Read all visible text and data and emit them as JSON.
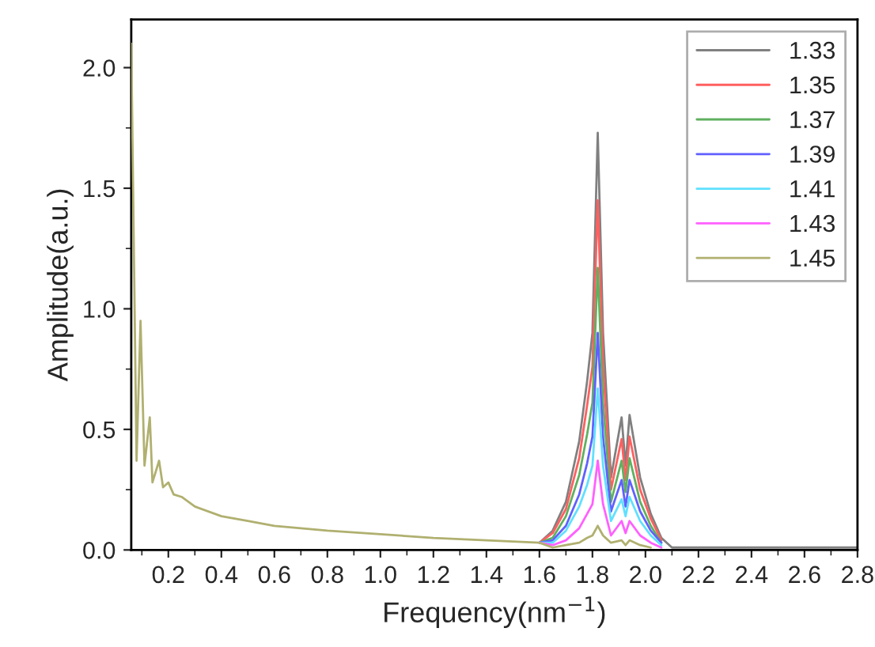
{
  "chart_data": {
    "type": "line",
    "xlabel": "Frequency(nm$^{−1}$)",
    "ylabel": "Amplitude(a.u.)",
    "x": [
      0.06,
      0.08,
      0.095,
      0.11,
      0.13,
      0.14,
      0.165,
      0.18,
      0.2,
      0.22,
      0.25,
      0.3,
      0.4,
      0.5,
      0.6,
      0.8,
      1.0,
      1.2,
      1.4,
      1.5,
      1.6,
      1.65,
      1.7,
      1.75,
      1.78,
      1.8,
      1.82,
      1.84,
      1.87,
      1.91,
      1.925,
      1.94,
      1.98,
      2.02,
      2.06,
      2.1,
      2.2,
      2.4,
      2.6,
      2.8
    ],
    "series": [
      {
        "name": "1.33",
        "color": "#808080",
        "values": [
          null,
          null,
          null,
          null,
          null,
          null,
          null,
          null,
          null,
          null,
          null,
          null,
          null,
          null,
          null,
          null,
          null,
          null,
          null,
          null,
          0.03,
          0.08,
          0.2,
          0.45,
          0.7,
          0.9,
          1.73,
          0.9,
          0.3,
          0.55,
          0.35,
          0.56,
          0.3,
          0.15,
          0.05,
          0.01,
          0.01,
          0.01,
          0.01,
          0.01
        ]
      },
      {
        "name": "1.35",
        "color": "#ff6060",
        "values": [
          null,
          null,
          null,
          null,
          null,
          null,
          null,
          null,
          null,
          null,
          null,
          null,
          null,
          null,
          null,
          null,
          null,
          null,
          null,
          null,
          0.03,
          0.07,
          0.17,
          0.38,
          0.6,
          0.76,
          1.45,
          0.76,
          0.25,
          0.46,
          0.29,
          0.47,
          0.25,
          0.13,
          0.04,
          null,
          null,
          null,
          null,
          null
        ]
      },
      {
        "name": "1.37",
        "color": "#60b060",
        "values": [
          null,
          null,
          null,
          null,
          null,
          null,
          null,
          null,
          null,
          null,
          null,
          null,
          null,
          null,
          null,
          null,
          null,
          null,
          null,
          null,
          0.03,
          0.05,
          0.14,
          0.31,
          0.48,
          0.61,
          1.17,
          0.61,
          0.2,
          0.37,
          0.24,
          0.38,
          0.2,
          0.1,
          0.03,
          null,
          null,
          null,
          null,
          null
        ]
      },
      {
        "name": "1.39",
        "color": "#6060ff",
        "values": [
          null,
          null,
          null,
          null,
          null,
          null,
          null,
          null,
          null,
          null,
          null,
          null,
          null,
          null,
          null,
          null,
          null,
          null,
          null,
          null,
          0.03,
          0.04,
          0.1,
          0.23,
          0.36,
          0.47,
          0.9,
          0.47,
          0.16,
          0.29,
          0.18,
          0.29,
          0.16,
          0.08,
          0.03,
          null,
          null,
          null,
          null,
          null
        ]
      },
      {
        "name": "1.41",
        "color": "#60e0ff",
        "values": [
          null,
          null,
          null,
          null,
          null,
          null,
          null,
          null,
          null,
          null,
          null,
          null,
          null,
          null,
          null,
          null,
          null,
          null,
          null,
          null,
          0.03,
          0.03,
          0.08,
          0.18,
          0.27,
          0.35,
          0.67,
          0.35,
          0.12,
          0.21,
          0.14,
          0.22,
          0.12,
          0.06,
          0.02,
          null,
          null,
          null,
          null,
          null
        ]
      },
      {
        "name": "1.43",
        "color": "#ff60ff",
        "values": [
          null,
          null,
          null,
          null,
          null,
          null,
          null,
          null,
          null,
          null,
          null,
          null,
          null,
          null,
          null,
          null,
          null,
          null,
          null,
          null,
          0.03,
          0.02,
          0.04,
          0.09,
          0.15,
          0.19,
          0.37,
          0.19,
          0.06,
          0.12,
          0.07,
          0.12,
          0.06,
          0.03,
          0.01,
          null,
          null,
          null,
          null,
          null
        ]
      },
      {
        "name": "1.45",
        "color": "#b0b070",
        "values": [
          2.1,
          0.37,
          0.95,
          0.35,
          0.55,
          0.28,
          0.37,
          0.26,
          0.28,
          0.23,
          0.22,
          0.18,
          0.14,
          0.12,
          0.1,
          0.08,
          0.065,
          0.05,
          0.04,
          0.035,
          0.03,
          0.01,
          0.02,
          0.03,
          0.05,
          0.06,
          0.1,
          0.06,
          0.03,
          0.04,
          0.02,
          0.04,
          0.02,
          0.01,
          null,
          null,
          null,
          null,
          null,
          null
        ]
      }
    ],
    "xlim": [
      0.06,
      2.8
    ],
    "xticks": [
      0.2,
      0.4,
      0.6,
      0.8,
      {
        "value": 1.0,
        "label": "1.0"
      },
      1.2,
      1.4,
      1.6,
      1.8,
      {
        "value": 2.0,
        "label": "2.0"
      },
      2.2,
      2.4,
      2.6,
      2.8
    ],
    "ylim": [
      0,
      2.2
    ],
    "yticks": [
      {
        "value": 0,
        "label": "0.0"
      },
      0.5,
      {
        "value": 1.0,
        "label": "1.0"
      },
      1.5,
      {
        "value": 2.0,
        "label": "2.0"
      }
    ],
    "legend": "top right",
    "grid": false
  }
}
